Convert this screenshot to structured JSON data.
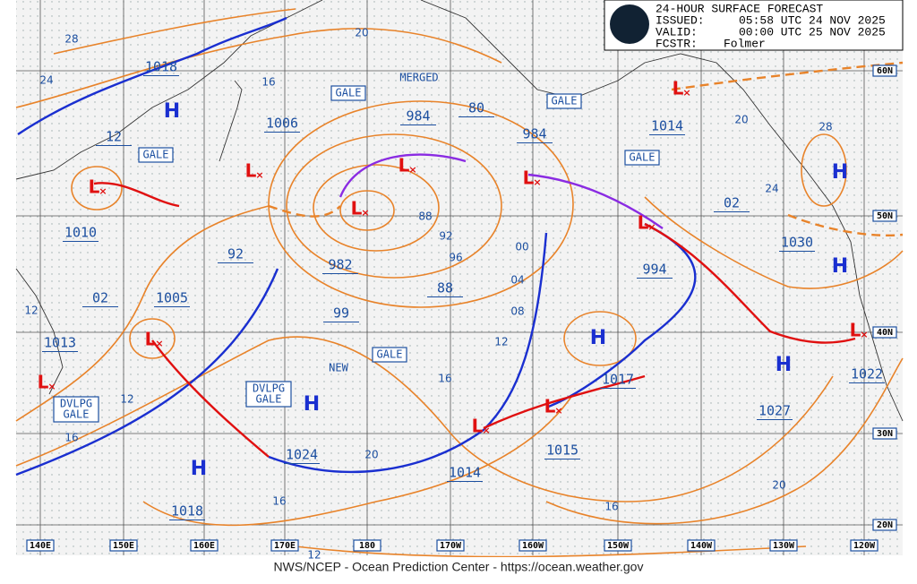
{
  "header": {
    "title": "24-HOUR SURFACE FORECAST",
    "issued_label": "ISSUED:",
    "issued": "05:58 UTC 24 NOV 2025",
    "valid_label": "VALID:",
    "valid": "00:00 UTC 25 NOV 2025",
    "forecaster_label": "FCSTR:",
    "forecaster": "Folmer"
  },
  "footer": "NWS/NCEP - Ocean Prediction Center - https://ocean.weather.gov",
  "longitude_labels": [
    "140E",
    "150E",
    "160E",
    "170E",
    "180",
    "170W",
    "160W",
    "150W",
    "140W",
    "130W",
    "120W"
  ],
  "latitude_labels": [
    "60N",
    "50N",
    "40N",
    "30N",
    "20N"
  ],
  "pressure_labels": [
    "1018",
    "12",
    "1006",
    "984",
    "80",
    "984",
    "1014",
    "1010",
    "92",
    "982",
    "88",
    "02",
    "1005",
    "99",
    "1013",
    "994",
    "02",
    "1030",
    "1017",
    "1022",
    "1027",
    "1024",
    "1014",
    "1015",
    "1018"
  ],
  "isobar_labels": [
    "28",
    "24",
    "20",
    "16",
    "88",
    "92",
    "96",
    "00",
    "04",
    "08",
    "12",
    "16",
    "20",
    "12",
    "16",
    "12",
    "16",
    "12",
    "16",
    "20",
    "24",
    "28",
    "20"
  ],
  "gale_boxes": [
    "GALE",
    "GALE",
    "GALE",
    "GALE",
    "GALE"
  ],
  "developing_gale_boxes": [
    [
      "DVLPG",
      "GALE"
    ],
    [
      "DVLPG",
      "GALE"
    ]
  ],
  "notes": [
    "MERGED",
    "NEW"
  ],
  "highs": [
    "H",
    "H",
    "H",
    "H",
    "H",
    "H",
    "H"
  ],
  "lows": [
    "L",
    "L",
    "L",
    "L",
    "L",
    "L",
    "L",
    "L",
    "L",
    "L",
    "L",
    "L"
  ]
}
